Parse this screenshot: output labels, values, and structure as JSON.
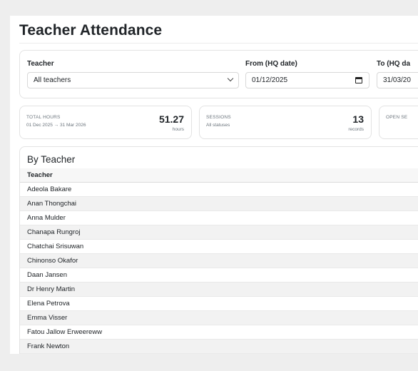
{
  "page": {
    "title": "Teacher Attendance"
  },
  "filters": {
    "teacher": {
      "label": "Teacher",
      "value": "All teachers"
    },
    "from": {
      "label": "From (HQ date)",
      "value": "01/12/2025"
    },
    "to": {
      "label": "To (HQ da",
      "value": "31/03/20"
    }
  },
  "stats": {
    "total_hours": {
      "label": "TOTAL HOURS",
      "sub": "01 Dec 2025 → 31 Mar 2026",
      "value": "51.27",
      "unit": "hours"
    },
    "sessions": {
      "label": "SESSIONS",
      "sub": "All statuses",
      "value": "13",
      "unit": "records"
    },
    "open": {
      "label": "OPEN SE"
    }
  },
  "by_teacher": {
    "title": "By Teacher",
    "column_header": "Teacher",
    "rows": [
      "Adeola Bakare",
      "Anan Thongchai",
      "Anna Mulder",
      "Chanapa Rungroj",
      "Chatchai Srisuwan",
      "Chinonso Okafor",
      "Daan Jansen",
      "Dr Henry Martin",
      "Elena Petrova",
      "Emma Visser",
      "Fatou Jallow Erweereww",
      "Frank Newton"
    ]
  }
}
